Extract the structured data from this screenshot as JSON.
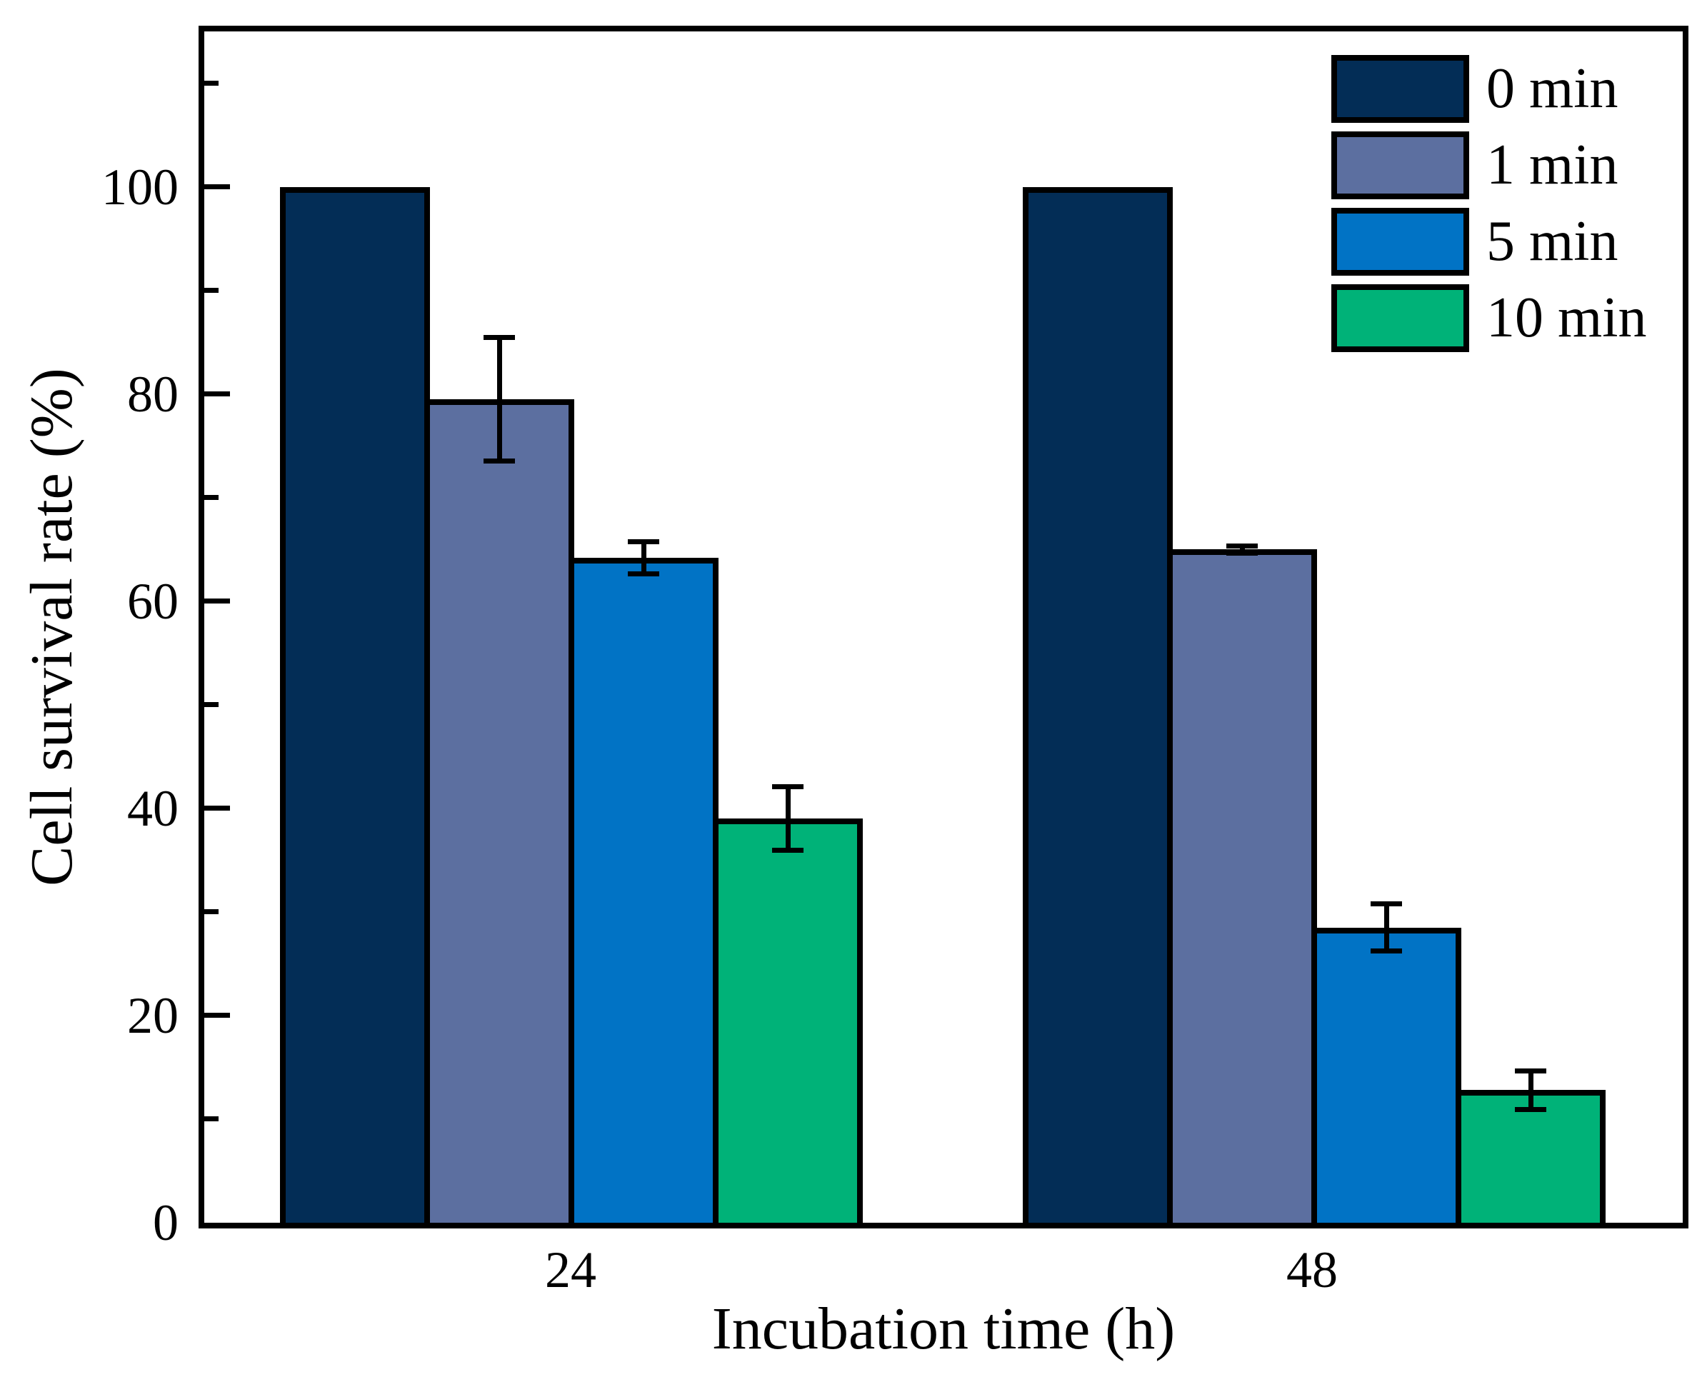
{
  "figure": {
    "background": "#ffffff",
    "frame_color": "#000000"
  },
  "chart_data": {
    "type": "bar",
    "title": "",
    "categories": [
      "24",
      "48"
    ],
    "xlabel": "Incubation time (h)",
    "ylabel": "Cell survival rate (%)",
    "ylim": [
      0,
      115
    ],
    "yticks": [
      0,
      20,
      40,
      60,
      80,
      100
    ],
    "minor_tick_interval": 10,
    "grid": false,
    "bar_outline_color": "#000000",
    "error_bar_color": "#000000",
    "legend": {
      "position": "top-right-inside",
      "entries": [
        "0 min",
        "1 min",
        "5 min",
        "10 min"
      ]
    },
    "series": [
      {
        "name": "0 min",
        "color": "#032d56",
        "values": [
          100.0,
          100.0
        ],
        "errors": [
          0.0,
          0.0
        ]
      },
      {
        "name": "1 min",
        "color": "#5c6fa0",
        "values": [
          79.5,
          65.0
        ],
        "errors": [
          6.2,
          0.6
        ]
      },
      {
        "name": "5 min",
        "color": "#0173c5",
        "values": [
          64.2,
          28.5
        ],
        "errors": [
          1.8,
          2.5
        ]
      },
      {
        "name": "10 min",
        "color": "#00b278",
        "values": [
          39.0,
          12.8
        ],
        "errors": [
          3.3,
          2.1
        ]
      }
    ]
  }
}
